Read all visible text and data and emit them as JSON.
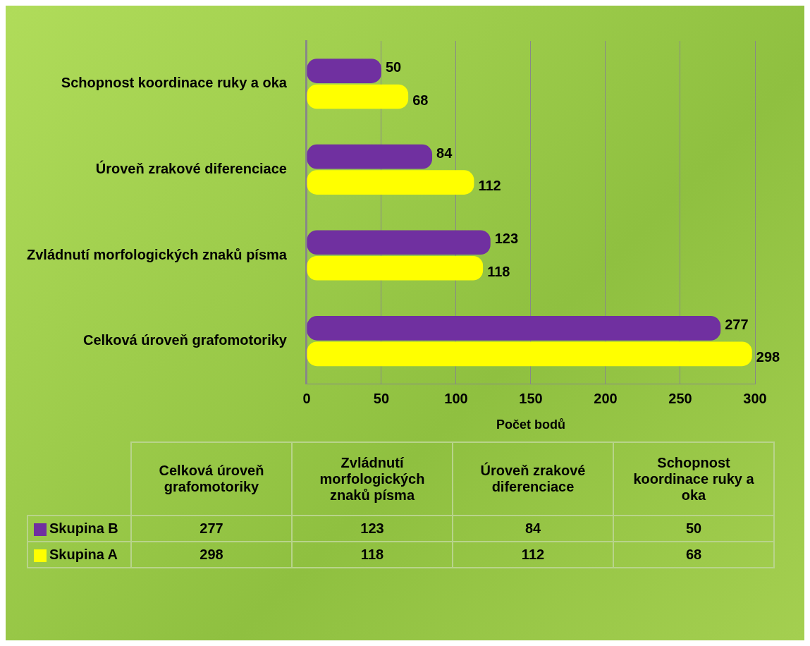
{
  "chart_data": {
    "type": "bar",
    "orientation": "horizontal",
    "xlabel": "Počet bodů",
    "categories": [
      "Schopnost koordinace ruky a oka",
      "Úroveň zrakové diferenciace",
      "Zvládnutí morfologických znaků písma",
      "Celková úroveň grafomotoriky"
    ],
    "series": [
      {
        "name": "Skupina B",
        "color": "#7030a0",
        "values": [
          50,
          84,
          123,
          277
        ]
      },
      {
        "name": "Skupina A",
        "color": "#ffff00",
        "values": [
          68,
          112,
          118,
          298
        ]
      }
    ],
    "xlim": [
      0,
      300
    ],
    "xticks": [
      0,
      50,
      100,
      150,
      200,
      250,
      300
    ],
    "grid": "x",
    "data_labels": true,
    "legend": "bottom",
    "annotations": [
      "277",
      "123",
      "84",
      "50",
      "298",
      "118",
      "112",
      "68"
    ]
  }
}
